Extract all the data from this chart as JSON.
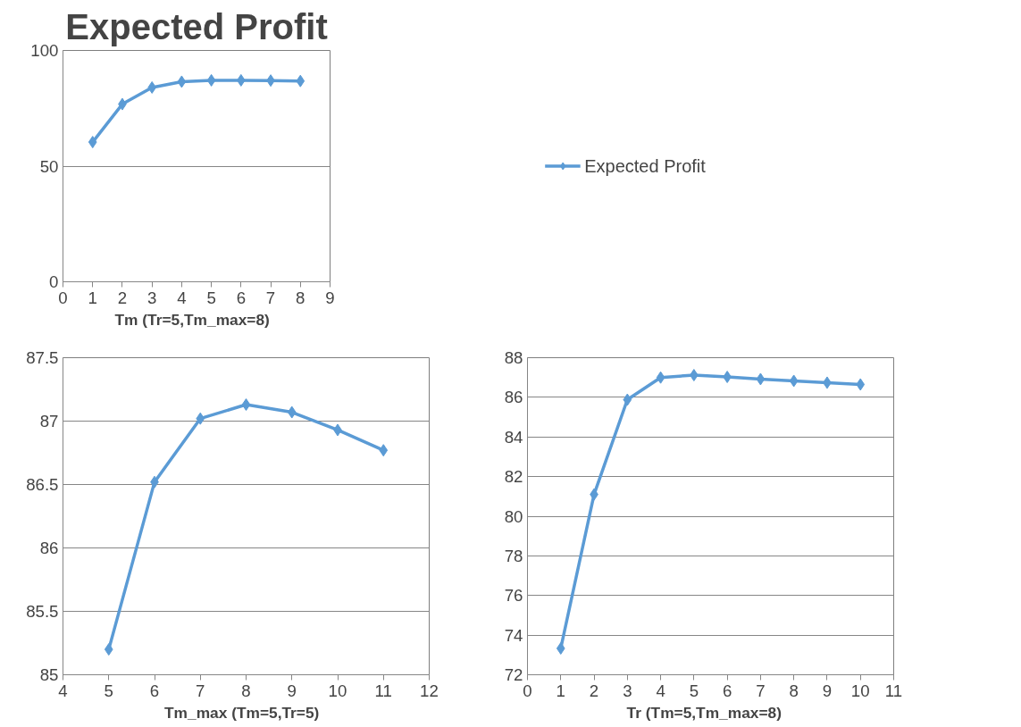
{
  "chart_data": [
    {
      "type": "line",
      "title": "Expected Profit",
      "xlabel": "Tm   (Tr=5,Tm_max=8)",
      "x": [
        1,
        2,
        3,
        4,
        5,
        6,
        7,
        8
      ],
      "series": [
        {
          "name": "Expected Profit",
          "color": "#5b9bd5",
          "values": [
            60.4,
            76.8,
            84.0,
            86.5,
            87.1,
            87.1,
            87.0,
            86.8
          ]
        }
      ],
      "xlim": [
        0,
        9
      ],
      "xticks": [
        0,
        1,
        2,
        3,
        4,
        5,
        6,
        7,
        8,
        9
      ],
      "ylim": [
        0,
        100
      ],
      "yticks": [
        0,
        50,
        100
      ],
      "grid": "y",
      "legend": "right",
      "marker": "diamond",
      "line_style": "solid"
    },
    {
      "type": "line",
      "xlabel": "Tm_max   (Tm=5,Tr=5)",
      "x": [
        5,
        6,
        7,
        8,
        9,
        10,
        11
      ],
      "series": [
        {
          "color": "#5b9bd5",
          "values": [
            85.2,
            86.52,
            87.02,
            87.13,
            87.07,
            86.93,
            86.77
          ]
        }
      ],
      "xlim": [
        4,
        12
      ],
      "xticks": [
        4,
        5,
        6,
        7,
        8,
        9,
        10,
        11,
        12
      ],
      "ylim": [
        85,
        87.5
      ],
      "yticks": [
        85,
        85.5,
        86,
        86.5,
        87,
        87.5
      ],
      "grid": "y",
      "marker": "diamond",
      "line_style": "solid"
    },
    {
      "type": "line",
      "xlabel": "Tr    (Tm=5,Tm_max=8)",
      "x": [
        1,
        2,
        3,
        4,
        5,
        6,
        7,
        8,
        9,
        10
      ],
      "series": [
        {
          "color": "#5b9bd5",
          "values": [
            73.33,
            81.1,
            85.88,
            87.0,
            87.12,
            87.03,
            86.92,
            86.83,
            86.74,
            86.65
          ]
        }
      ],
      "xlim": [
        0,
        11
      ],
      "xticks": [
        0,
        1,
        2,
        3,
        4,
        5,
        6,
        7,
        8,
        9,
        10,
        11
      ],
      "ylim": [
        72,
        88
      ],
      "yticks": [
        72,
        74,
        76,
        78,
        80,
        82,
        84,
        86,
        88
      ],
      "grid": "y",
      "marker": "diamond",
      "line_style": "solid"
    }
  ]
}
